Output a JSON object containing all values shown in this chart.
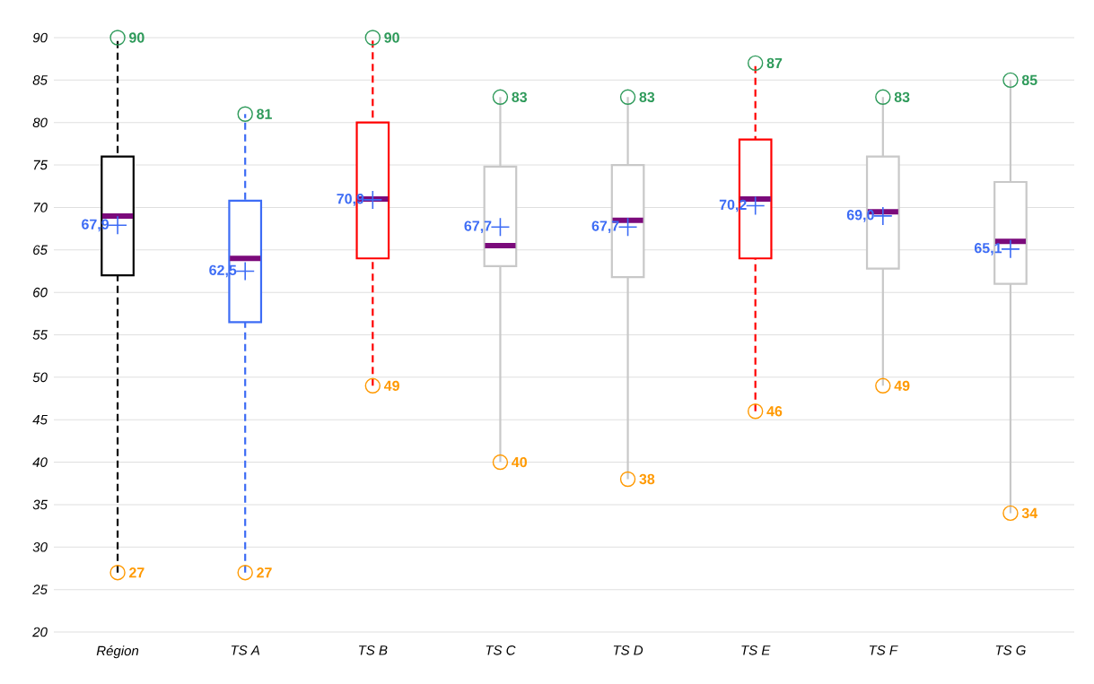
{
  "chart_data": {
    "type": "box",
    "categories": [
      "Région",
      "TS A",
      "TS B",
      "TS C",
      "TS D",
      "TS E",
      "TS F",
      "TS G"
    ],
    "series": [
      {
        "color": "#000000",
        "line_style": "dashed",
        "boxes": [
          {
            "low": 27,
            "q1": 62,
            "median": 69,
            "q3": 76,
            "high": 90,
            "mean": 67.9
          },
          null,
          null,
          null,
          null,
          null,
          null,
          null
        ]
      },
      {
        "color": "#3d6cf5",
        "line_style": "dashed",
        "boxes": [
          null,
          {
            "low": 27,
            "q1": 56.5,
            "median": 64,
            "q3": 70.8,
            "high": 81,
            "mean": 62.5
          },
          null,
          null,
          null,
          null,
          null,
          null
        ]
      },
      {
        "color": "#ff0000",
        "line_style": "dashed",
        "boxes": [
          null,
          null,
          {
            "low": 49,
            "q1": 64,
            "median": 71,
            "q3": 80,
            "high": 90,
            "mean": 70.9
          },
          null,
          null,
          {
            "low": 46,
            "q1": 64,
            "median": 71,
            "q3": 78,
            "high": 87,
            "mean": 70.2
          },
          null,
          null
        ]
      },
      {
        "color": "#c8c8c8",
        "line_style": "solid",
        "boxes": [
          null,
          null,
          null,
          {
            "low": 40,
            "q1": 63.1,
            "median": 65.5,
            "q3": 74.8,
            "high": 83,
            "mean": 67.7
          },
          {
            "low": 38,
            "q1": 61.8,
            "median": 68.5,
            "q3": 75,
            "high": 83,
            "mean": 67.7
          },
          null,
          {
            "low": 49,
            "q1": 62.8,
            "median": 69.5,
            "q3": 76,
            "high": 83,
            "mean": 69.0
          },
          {
            "low": 34,
            "q1": 61,
            "median": 66,
            "q3": 73,
            "high": 85,
            "mean": 65.1
          }
        ]
      }
    ],
    "ylim": [
      20,
      90
    ],
    "yticks": [
      20,
      25,
      30,
      35,
      40,
      45,
      50,
      55,
      60,
      65,
      70,
      75,
      80,
      85,
      90
    ],
    "grid": "y",
    "annotations": [
      {
        "text": "90",
        "x": "Région",
        "y": 90
      },
      {
        "text": "67,9",
        "x": "Région",
        "y": 67.9
      },
      {
        "text": "27",
        "x": "Région",
        "y": 27
      },
      {
        "text": "81",
        "x": "TS A",
        "y": 81
      },
      {
        "text": "62,5",
        "x": "TS A",
        "y": 62.5
      },
      {
        "text": "27",
        "x": "TS A",
        "y": 27
      },
      {
        "text": "90",
        "x": "TS B",
        "y": 90
      },
      {
        "text": "70,9",
        "x": "TS B",
        "y": 70.9
      },
      {
        "text": "49",
        "x": "TS B",
        "y": 49
      },
      {
        "text": "83",
        "x": "TS C",
        "y": 83
      },
      {
        "text": "67,7",
        "x": "TS C",
        "y": 67.7
      },
      {
        "text": "40",
        "x": "TS C",
        "y": 40
      },
      {
        "text": "83",
        "x": "TS D",
        "y": 83
      },
      {
        "text": "67,7",
        "x": "TS D",
        "y": 67.7
      },
      {
        "text": "38",
        "x": "TS D",
        "y": 38
      },
      {
        "text": "87",
        "x": "TS E",
        "y": 87
      },
      {
        "text": "70,2",
        "x": "TS E",
        "y": 70.2
      },
      {
        "text": "46",
        "x": "TS E",
        "y": 46
      },
      {
        "text": "83",
        "x": "TS F",
        "y": 83
      },
      {
        "text": "69,0",
        "x": "TS F",
        "y": 69.0
      },
      {
        "text": "49",
        "x": "TS F",
        "y": 49
      },
      {
        "text": "85",
        "x": "TS G",
        "y": 85
      },
      {
        "text": "65,1",
        "x": "TS G",
        "y": 65.1
      },
      {
        "text": "34",
        "x": "TS G",
        "y": 34
      }
    ]
  }
}
